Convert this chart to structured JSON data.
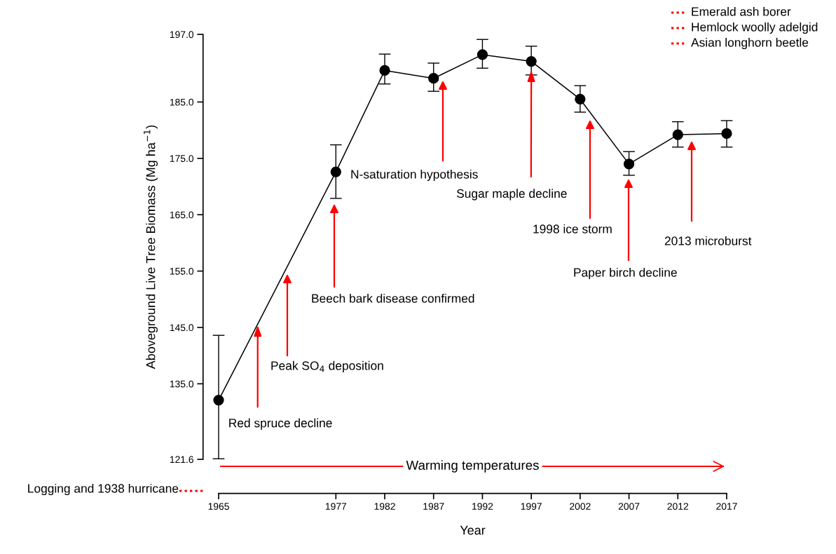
{
  "chart_data": {
    "type": "line",
    "xlabel": "Year",
    "ylabel": "Aboveground Live Tree Biomass (Mg ha$^{−1}$)",
    "x": [
      1965,
      1977,
      1982,
      1987,
      1992,
      1997,
      2002,
      2007,
      2012,
      2017
    ],
    "series": [
      {
        "color": "#000000",
        "values": [
          132.1,
          172.6,
          190.6,
          189.2,
          193.4,
          192.2,
          185.5,
          174.0,
          179.2,
          179.4
        ],
        "errors": [
          [
            121.7,
            143.6
          ],
          [
            167.9,
            177.4
          ],
          [
            188.2,
            193.5
          ],
          [
            186.9,
            191.9
          ],
          [
            191.0,
            196.1
          ],
          [
            189.8,
            194.9
          ],
          [
            183.2,
            187.9
          ],
          [
            172.0,
            176.2
          ],
          [
            177.0,
            181.5
          ],
          [
            177.0,
            181.7
          ]
        ]
      }
    ],
    "xlim": [
      1965,
      2017
    ],
    "xticks": [
      1965,
      1977,
      1982,
      1987,
      1992,
      1997,
      2002,
      2007,
      2012,
      2017
    ],
    "ylim": [
      121.6,
      197.0
    ],
    "yticks": [
      {
        "value": 121.6,
        "label": "121.6"
      },
      {
        "value": 135,
        "label": "135.0"
      },
      {
        "value": 145,
        "label": "145.0"
      },
      {
        "value": 155,
        "label": "155.0"
      },
      {
        "value": 165,
        "label": "165.0"
      },
      {
        "value": 175,
        "label": "175.0"
      },
      {
        "value": 185,
        "label": "185.0"
      },
      {
        "value": 197,
        "label": "197.0"
      }
    ],
    "marker": "circle",
    "line_style": "solid",
    "grid": false,
    "annotations": [
      {
        "text": "Red spruce decline",
        "x": 1969,
        "y": 145.4
      },
      "Peak SO$_{4}$ deposition",
      "Beech bark disease confirmed",
      "N-saturation hypothesis",
      {
        "text": "Sugar maple decline",
        "x": 1997,
        "y": 190.6
      },
      "1998 ice storm",
      "Paper birch decline",
      "2013 microburst",
      "Warming temperatures",
      "Logging and 1938 hurricane",
      "Emerald ash borer",
      "Hemlock woolly adelgid",
      "Asian longhorn beetle"
    ]
  }
}
